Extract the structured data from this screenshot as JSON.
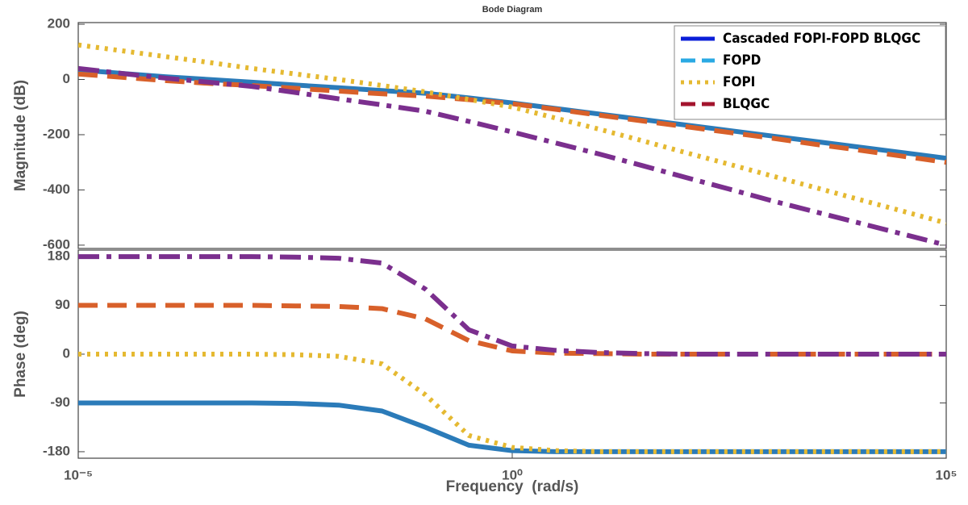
{
  "chart_data": [
    {
      "type": "line",
      "title": "Bode Diagram",
      "ylabel": "Magnitude (dB)",
      "xscale": "log",
      "x": [
        1e-05,
        3.16e-05,
        0.0001,
        0.000316,
        0.001,
        0.00316,
        0.01,
        0.0316,
        0.1,
        0.316,
        1,
        3.16,
        10,
        31.6,
        100,
        316,
        1000,
        3160,
        10000,
        31600,
        100000
      ],
      "xlim": [
        1e-05,
        100000
      ],
      "ylim": [
        -612,
        206
      ],
      "yticks": [
        -600,
        -400,
        -200,
        0,
        200
      ],
      "legend": "upper right",
      "series": [
        {
          "name": "Cascaded FOPI-FOPD BLQGC",
          "color": "#2b7bb9",
          "legend_color": "#0a1ed8",
          "style": "solid",
          "values": [
            35,
            22,
            10,
            0,
            -10,
            -20,
            -30,
            -40,
            -50,
            -67,
            -85,
            -105,
            -125,
            -145,
            -165,
            -185,
            -205,
            -225,
            -245,
            -265,
            -285
          ]
        },
        {
          "name": "FOPD",
          "color": "#d8602a",
          "legend_color": "#2aa9e3",
          "style": "dashed",
          "values": [
            20,
            8,
            -4,
            -14,
            -22,
            -32,
            -42,
            -52,
            -60,
            -73,
            -88,
            -108,
            -129,
            -150,
            -171,
            -192,
            -213,
            -235,
            -256,
            -278,
            -300
          ]
        },
        {
          "name": "FOPI",
          "color": "#e5b931",
          "legend_color": "#e5b931",
          "style": "dotted",
          "values": [
            125,
            104,
            83,
            62,
            40,
            20,
            0,
            -22,
            -45,
            -72,
            -100,
            -140,
            -180,
            -222,
            -265,
            -307,
            -350,
            -392,
            -435,
            -477,
            -520
          ]
        },
        {
          "name": "BLQGC",
          "color": "#7b2f8e",
          "legend_color": "#a3142d",
          "style": "dashdot",
          "values": [
            40,
            22,
            5,
            -10,
            -25,
            -47,
            -70,
            -92,
            -115,
            -152,
            -190,
            -230,
            -270,
            -312,
            -355,
            -397,
            -440,
            -480,
            -520,
            -560,
            -600
          ]
        }
      ]
    },
    {
      "type": "line",
      "ylabel": "Phase (deg)",
      "xlabel": "Frequency  (rad/s)",
      "xscale": "log",
      "x": [
        1e-05,
        3.16e-05,
        0.0001,
        0.000316,
        0.001,
        0.00316,
        0.01,
        0.0316,
        0.1,
        0.316,
        1,
        3.16,
        10,
        31.6,
        100,
        316,
        1000,
        3160,
        10000,
        31600,
        100000
      ],
      "xlim": [
        1e-05,
        100000
      ],
      "xticks": [
        {
          "value": 1e-05,
          "label": "10⁻⁵"
        },
        {
          "value": 1,
          "label": "10⁰"
        },
        {
          "value": 100000,
          "label": "10⁵"
        }
      ],
      "ylim": [
        -192,
        192
      ],
      "yticks": [
        -180,
        -90,
        0,
        90,
        180
      ],
      "series": [
        {
          "color": "#2b7bb9",
          "style": "solid",
          "values": [
            -90,
            -90,
            -90,
            -90,
            -90,
            -91,
            -94,
            -105,
            -135,
            -168,
            -178,
            -180,
            -180,
            -180,
            -180,
            -180,
            -180,
            -180,
            -180,
            -180,
            -180
          ]
        },
        {
          "color": "#d8602a",
          "style": "dashed",
          "values": [
            90,
            90,
            90,
            90,
            90,
            89,
            88,
            84,
            65,
            25,
            6,
            2,
            1,
            0,
            0,
            0,
            0,
            0,
            0,
            0,
            0
          ]
        },
        {
          "color": "#e5b931",
          "style": "dotted",
          "values": [
            0,
            0,
            0,
            0,
            0,
            -1,
            -4,
            -18,
            -75,
            -150,
            -172,
            -178,
            -180,
            -180,
            -180,
            -180,
            -180,
            -180,
            -180,
            -180,
            -180
          ]
        },
        {
          "color": "#7b2f8e",
          "style": "dashdot",
          "values": [
            180,
            180,
            180,
            180,
            180,
            179,
            177,
            168,
            120,
            45,
            15,
            7,
            3,
            1,
            0,
            0,
            0,
            0,
            0,
            0,
            0
          ]
        }
      ]
    }
  ]
}
